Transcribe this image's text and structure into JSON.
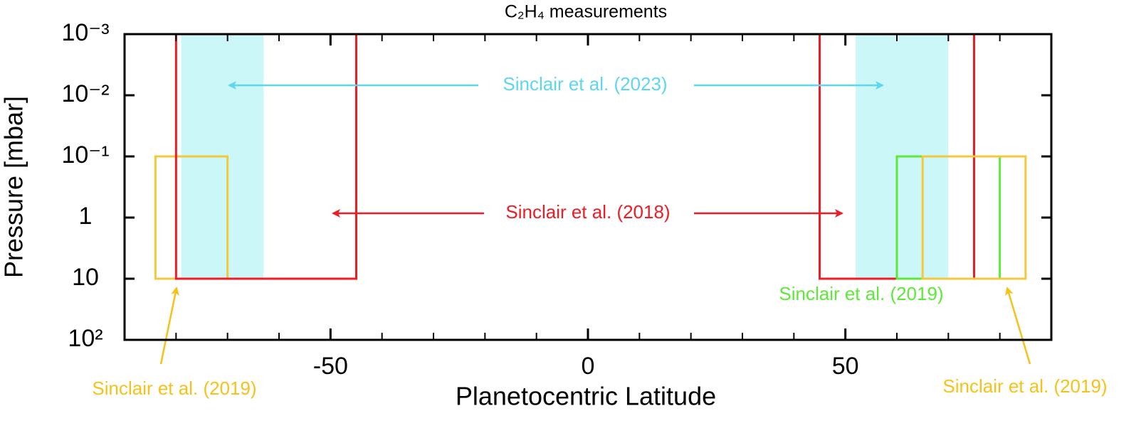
{
  "chart_data": {
    "type": "range",
    "title": "C₂H₄ measurements",
    "x_label": "Planetocentric Latitude",
    "y_label": "Pressure [mbar]",
    "xlim": [
      -90,
      90
    ],
    "xticks": [
      -50,
      0,
      50
    ],
    "xminorticks": [
      -80,
      -70,
      -60,
      -50,
      -40,
      -30,
      -20,
      -10,
      0,
      10,
      20,
      30,
      40,
      50,
      60,
      70,
      80
    ],
    "ylim": [
      100,
      0.001
    ],
    "ylog": true,
    "yticks": [
      {
        "value": 0.001,
        "label": "10⁻³"
      },
      {
        "value": 0.01,
        "label": "10⁻²"
      },
      {
        "value": 0.1,
        "label": "10⁻¹"
      },
      1,
      10,
      {
        "value": 100,
        "label": "10²"
      }
    ],
    "boxes": [
      {
        "color": "#ccf7f8",
        "filled": true,
        "lat": [
          -79,
          -63
        ],
        "pressure": [
          0.001,
          10
        ]
      },
      {
        "color": "#ccf7f8",
        "filled": true,
        "lat": [
          52,
          70
        ],
        "pressure": [
          0.001,
          10
        ]
      },
      {
        "color": "#f2c83c",
        "filled": false,
        "lat": [
          -84,
          -70
        ],
        "pressure": [
          0.1,
          10
        ]
      },
      {
        "color": "#ee1c24",
        "filled": false,
        "lat": [
          -80,
          -45
        ],
        "pressure": [
          0.001,
          10
        ]
      },
      {
        "color": "#ee1c24",
        "filled": false,
        "lat": [
          45,
          75
        ],
        "pressure": [
          0.001,
          10
        ]
      },
      {
        "color": "#5ee83a",
        "filled": false,
        "lat": [
          60,
          80
        ],
        "pressure": [
          0.1,
          10
        ]
      },
      {
        "color": "#f2c83c",
        "filled": false,
        "lat": [
          65,
          85
        ],
        "pressure": [
          0.1,
          10
        ]
      }
    ],
    "annotations": [
      {
        "text": "Sinclair et al. (2023)",
        "color": "#5dd6f0"
      },
      {
        "text": "Sinclair et al. (2018)",
        "color": "#ee1c24"
      },
      {
        "text": "Sinclair et al. (2019)",
        "color": "#5ee83a"
      },
      {
        "text": "Sinclair et al. (2019)",
        "color": "#f6c21a"
      },
      {
        "text": "Sinclair et al. (2019)",
        "color": "#f6c21a"
      }
    ]
  }
}
